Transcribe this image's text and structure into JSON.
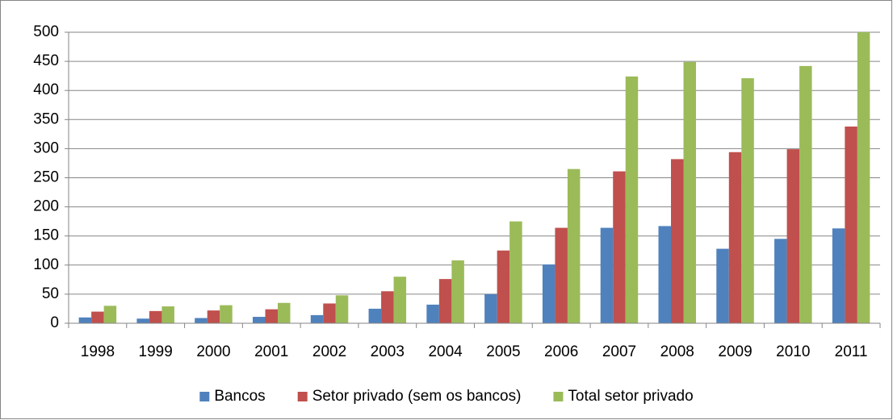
{
  "chart_data": {
    "type": "bar",
    "categories": [
      "1998",
      "1999",
      "2000",
      "2001",
      "2002",
      "2003",
      "2004",
      "2005",
      "2006",
      "2007",
      "2008",
      "2009",
      "2010",
      "2011"
    ],
    "series": [
      {
        "name": "Bancos",
        "color": "#4f81bd",
        "values": [
          10,
          8,
          9,
          11,
          14,
          25,
          32,
          50,
          101,
          164,
          167,
          128,
          145,
          163
        ]
      },
      {
        "name": "Setor privado (sem os bancos)",
        "color": "#c0504d",
        "values": [
          20,
          21,
          22,
          24,
          34,
          55,
          76,
          125,
          164,
          261,
          282,
          294,
          299,
          338
        ]
      },
      {
        "name": "Total setor privado",
        "color": "#9bbb59",
        "values": [
          30,
          29,
          31,
          35,
          48,
          80,
          108,
          175,
          265,
          424,
          449,
          421,
          442,
          500
        ]
      }
    ],
    "ylim": [
      0,
      500
    ],
    "yticks": [
      0,
      50,
      100,
      150,
      200,
      250,
      300,
      350,
      400,
      450,
      500
    ],
    "grid": true,
    "legend": "bottom"
  }
}
